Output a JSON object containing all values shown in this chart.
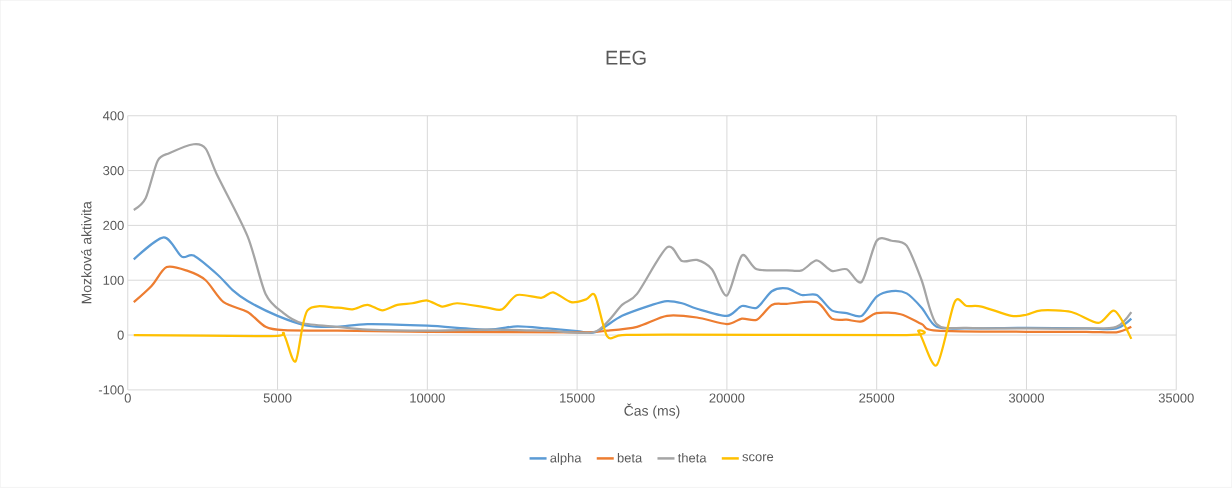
{
  "chart_data": {
    "type": "line",
    "title": "EEG",
    "xlabel": "Čas (ms)",
    "ylabel": "Mozková aktivita",
    "xlim": [
      0,
      35000
    ],
    "ylim": [
      -100,
      400
    ],
    "xticks": [
      0,
      5000,
      10000,
      15000,
      20000,
      25000,
      30000,
      35000
    ],
    "yticks": [
      -100,
      0,
      100,
      200,
      300,
      400
    ],
    "grid": true,
    "legend": "bottom",
    "marker": "none",
    "line_style": "solid",
    "series": [
      {
        "name": "alpha",
        "color": "#5b9bd5",
        "x": [
          200,
          1200,
          1800,
          2200,
          3000,
          3500,
          4000,
          5000,
          6000,
          7000,
          8000,
          10000,
          12000,
          13000,
          14000,
          15000,
          15600,
          16500,
          17500,
          18000,
          18500,
          19000,
          20000,
          20500,
          21000,
          21500,
          22000,
          22500,
          23000,
          23500,
          24000,
          24500,
          25000,
          25500,
          26000,
          26500,
          27000,
          28000,
          30000,
          32000,
          33000,
          33500
        ],
        "values": [
          138,
          178,
          143,
          145,
          110,
          82,
          62,
          35,
          17,
          15,
          20,
          17,
          10,
          16,
          12,
          7,
          5,
          35,
          55,
          62,
          58,
          48,
          35,
          53,
          50,
          80,
          85,
          73,
          73,
          45,
          40,
          35,
          70,
          80,
          76,
          50,
          15,
          12,
          13,
          12,
          12,
          30
        ]
      },
      {
        "name": "beta",
        "color": "#ed7d31",
        "x": [
          200,
          800,
          1300,
          2000,
          2600,
          3200,
          4000,
          4600,
          5200,
          7000,
          10000,
          15000,
          16000,
          17000,
          18000,
          19000,
          20000,
          20500,
          21000,
          21500,
          22000,
          23000,
          23500,
          24000,
          24500,
          25000,
          25800,
          26500,
          27000,
          30000,
          32000,
          33000,
          33500
        ],
        "values": [
          60,
          90,
          124,
          117,
          100,
          60,
          42,
          15,
          9,
          8,
          6,
          5,
          8,
          15,
          35,
          32,
          20,
          30,
          28,
          55,
          57,
          60,
          30,
          28,
          25,
          40,
          38,
          20,
          8,
          6,
          6,
          5,
          15
        ]
      },
      {
        "name": "theta",
        "color": "#a5a5a5",
        "x": [
          200,
          600,
          1000,
          1400,
          2200,
          2600,
          3000,
          4000,
          4600,
          5200,
          5800,
          7000,
          8000,
          10000,
          12000,
          14000,
          15600,
          16500,
          17000,
          18000,
          18500,
          19000,
          19500,
          20000,
          20500,
          21000,
          22000,
          22500,
          23000,
          23500,
          24000,
          24500,
          25000,
          25500,
          26000,
          26500,
          27000,
          28000,
          30000,
          32000,
          33000,
          33500
        ],
        "values": [
          228,
          250,
          318,
          332,
          348,
          340,
          290,
          180,
          75,
          40,
          22,
          15,
          10,
          8,
          10,
          8,
          6,
          55,
          75,
          160,
          135,
          137,
          120,
          72,
          145,
          120,
          118,
          118,
          136,
          117,
          120,
          97,
          172,
          172,
          163,
          100,
          20,
          13,
          12,
          12,
          15,
          42
        ]
      },
      {
        "name": "score",
        "color": "#ffc000",
        "x": [
          200,
          4800,
          5200,
          5600,
          6000,
          7000,
          7500,
          8000,
          8500,
          9000,
          9500,
          10000,
          10500,
          11000,
          12000,
          12500,
          13000,
          13800,
          14200,
          14800,
          15300,
          15600,
          16000,
          16500,
          18000,
          26000,
          26400,
          27000,
          27600,
          28000,
          28500,
          29500,
          30000,
          30500,
          31500,
          32400,
          32950,
          33500
        ],
        "values": [
          0,
          -2,
          2,
          -48,
          45,
          50,
          47,
          55,
          45,
          55,
          58,
          63,
          52,
          58,
          50,
          47,
          73,
          68,
          78,
          60,
          65,
          72,
          -2,
          0,
          1,
          0,
          6,
          -55,
          60,
          53,
          52,
          35,
          37,
          45,
          42,
          22,
          44,
          -7
        ]
      }
    ]
  }
}
